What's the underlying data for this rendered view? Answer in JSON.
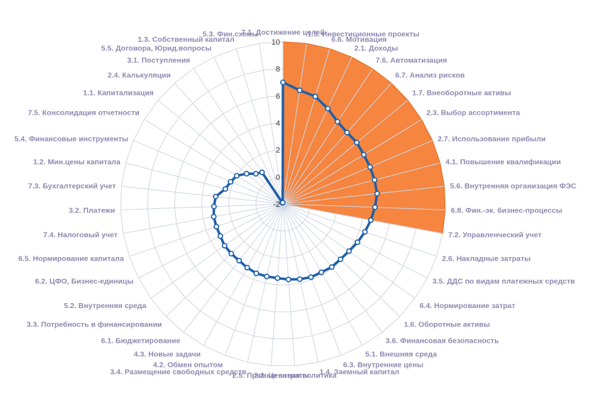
{
  "chart_data": {
    "type": "radar",
    "rmin": -2,
    "rmax": 10,
    "ticks": [
      "-2",
      "0",
      "2",
      "4",
      "6",
      "8",
      "10"
    ],
    "tick_values": [
      -2,
      0,
      2,
      4,
      6,
      8,
      10
    ],
    "grid": true,
    "highlight_sector": {
      "from_index": 0,
      "to_index": 12,
      "value": 10,
      "color": "#f5853f"
    },
    "line_color": "#1f5fa8",
    "categories": [
      "7.1. Достижение целей",
      "1.5. Инвестиционные проекты",
      "6.6. Мотивация",
      "2.1. Доходы",
      "7.6. Автоматизация",
      "6.7. Анализ рисков",
      "1.7. Внеоборотные активы",
      "2.3. Выбор ассортимента",
      "2.7. Использование прибыли",
      "4.1. Повышение квалификации",
      "5.6. Внутренняя организация ФЭС",
      "6.8. Фин.-эк. бизнес-процессы",
      "7.2. Управленческий учет",
      "2.6. Накладные затраты",
      "3.5. ДДС по видам платежных средств",
      "6.4. Нормирование затрат",
      "1.6. Оборотные активы",
      "3.6. Финансовая безопасность",
      "5.1. Внешняя среда",
      "6.3. Внутренние цены",
      "1.4. Заемный капитал",
      "2.2. Ценовая политика",
      "2.5. Прямые затраты",
      "3.4. Размещение свободных средств",
      "4.2. Обмен опытом",
      "4.3. Новые задачи",
      "6.1. Бюджетирование",
      "3.3. Потребность в финансировании",
      "5.2. Внутренняя среда",
      "6.2. ЦФО, Бизнес-единицы",
      "6.5. Нормирование капитала",
      "7.4. Налоговый учет",
      "3.2. Платежи",
      "7.3. Бухгалтерский учет",
      "1.2. Мин.цены капитала",
      "5.4. Финансовые инструменты",
      "7.5. Консолидация отчетности",
      "1.1. Капитализация",
      "2.4. Калькуляции",
      "3.1. Поступления",
      "5.5. Договора, Юрид.вопросы",
      "1.3. Собственный капитал",
      "5.3. Фин.схемы"
    ],
    "values": [
      7,
      6.5,
      6.3,
      5.8,
      5.3,
      5.1,
      5.1,
      5.0,
      5.0,
      5.0,
      5.0,
      4.8,
      4.6,
      4.4,
      4.2,
      4.0,
      3.9,
      3.9,
      3.8,
      3.8,
      3.7,
      3.6,
      3.5,
      3.5,
      3.5,
      3.4,
      3.3,
      3.3,
      3.3,
      3.2,
      3.2,
      3.2,
      3.1,
      3.0,
      2.4,
      2.2,
      2.0,
      1.5,
      1.0,
      0.8,
      -1.9,
      -1.9,
      -1.9
    ]
  }
}
